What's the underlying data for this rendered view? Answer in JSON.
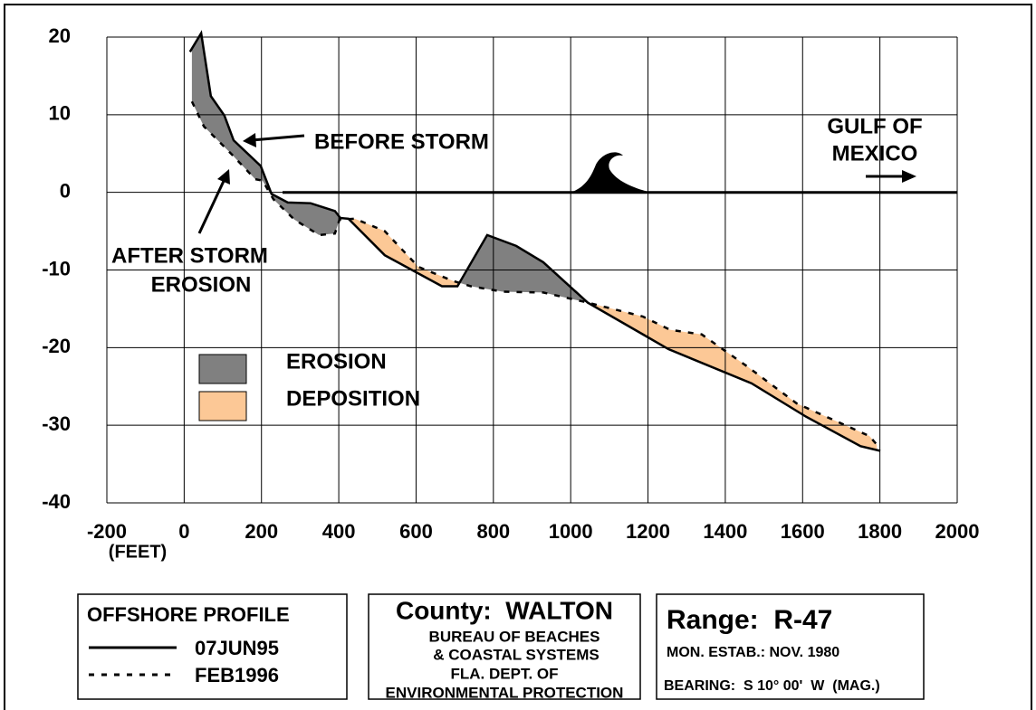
{
  "chart_data": {
    "type": "line",
    "xlim": [
      -200,
      2000
    ],
    "ylim": [
      -40,
      20
    ],
    "xticks": [
      -200,
      0,
      200,
      400,
      600,
      800,
      1000,
      1200,
      1400,
      1600,
      1800,
      2000
    ],
    "yticks": [
      -40,
      -30,
      -20,
      -10,
      0,
      10,
      20
    ],
    "x_label": "(FEET)",
    "grid": true,
    "annotations": [
      "BEFORE STORM",
      "AFTER STORM",
      "EROSION",
      "GULF OF",
      "MEXICO"
    ],
    "legend_title": "OFFSHORE PROFILE",
    "series": [
      {
        "name": "07JUN95",
        "color": "#000000",
        "line_style": "solid",
        "x": [
          15,
          44,
          69,
          104,
          128,
          198,
          226,
          268,
          327,
          390,
          404,
          425,
          519,
          667,
          707,
          784,
          859,
          929,
          1044,
          1187,
          1253,
          1468,
          1609,
          1750,
          1801
        ],
        "values": [
          18.1,
          20.5,
          12.4,
          9.9,
          6.7,
          3.4,
          -0.2,
          -1.3,
          -1.4,
          -2.4,
          -3.3,
          -3.4,
          -8.1,
          -12.1,
          -12.1,
          -5.5,
          -6.9,
          -9.0,
          -14.2,
          -18.3,
          -20.2,
          -24.6,
          -28.9,
          -32.7,
          -33.3
        ]
      },
      {
        "name": "FEB1996",
        "color": "#000000",
        "line_style": "dotted",
        "x": [
          20,
          51,
          121,
          184,
          203,
          231,
          285,
          349,
          390,
          402,
          442,
          519,
          606,
          695,
          742,
          824,
          929,
          1044,
          1187,
          1257,
          1339,
          1456,
          1585,
          1773,
          1792
        ],
        "values": [
          11.7,
          8.5,
          5.0,
          1.7,
          1.5,
          -0.9,
          -3.5,
          -5.5,
          -5.3,
          -3.5,
          -3.4,
          -5.0,
          -9.6,
          -11.4,
          -12.1,
          -12.8,
          -12.9,
          -14.2,
          -16.0,
          -17.7,
          -18.3,
          -22.4,
          -27.2,
          -31.4,
          -32.5
        ]
      }
    ],
    "fill_legend": [
      {
        "name": "EROSION",
        "color": "#808080"
      },
      {
        "name": "DEPOSITION",
        "color": "#fcc896"
      }
    ]
  },
  "info": {
    "county": "County:  WALTON",
    "agency": [
      "BUREAU OF BEACHES",
      "& COASTAL SYSTEMS",
      "FLA. DEPT. OF",
      "ENVIRONMENTAL PROTECTION"
    ],
    "range": "Range:  R-47",
    "established": "MON. ESTAB.: NOV. 1980",
    "bearing": "BEARING:  S 10° 00'  W  (MAG.)"
  }
}
